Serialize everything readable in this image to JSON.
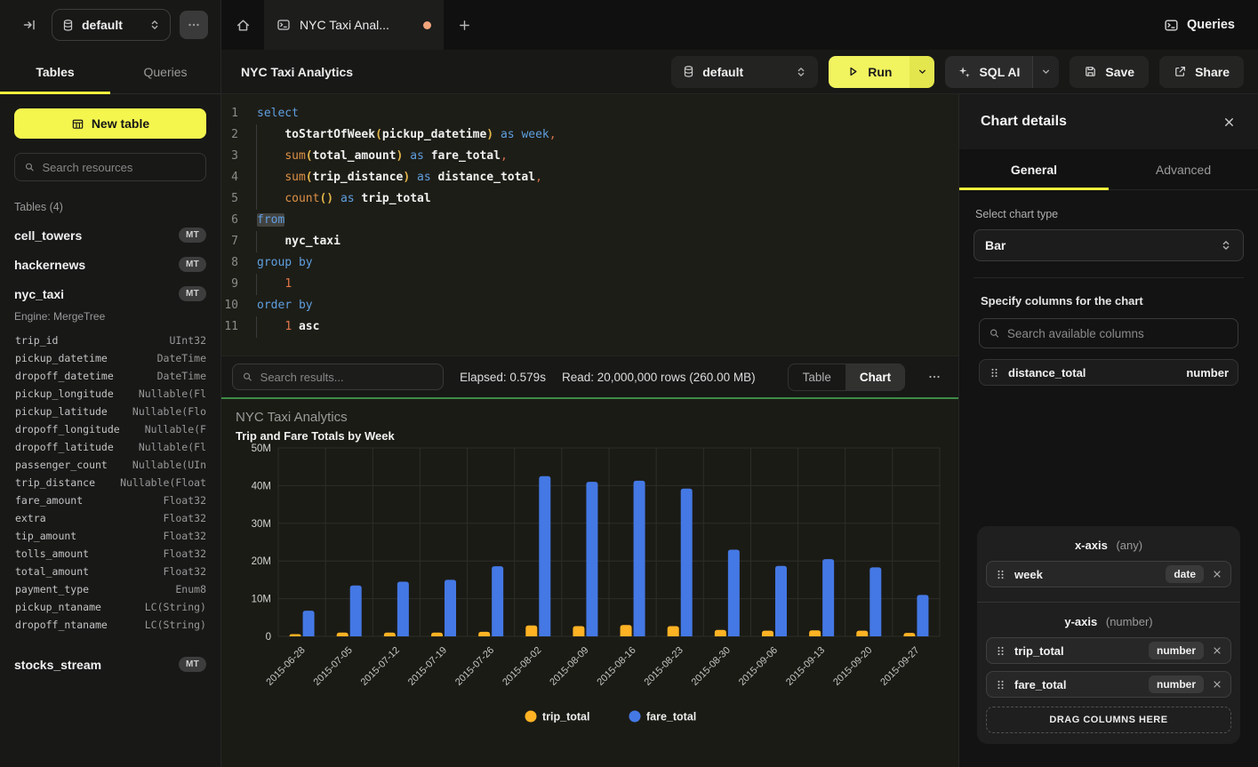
{
  "topbar": {
    "database_selector": {
      "value": "default"
    },
    "tab": {
      "title": "NYC Taxi Anal..."
    },
    "queries_label": "Queries"
  },
  "sidebar": {
    "tabs": {
      "tables": "Tables",
      "queries": "Queries"
    },
    "new_table_label": "New table",
    "search_placeholder": "Search resources",
    "section_label": "Tables (4)",
    "tables": [
      {
        "name": "cell_towers",
        "badge": "MT"
      },
      {
        "name": "hackernews",
        "badge": "MT"
      },
      {
        "name": "nyc_taxi",
        "badge": "MT"
      },
      {
        "name": "stocks_stream",
        "badge": "MT"
      }
    ],
    "nyc_taxi_engine": "Engine: MergeTree",
    "nyc_taxi_columns": [
      {
        "name": "trip_id",
        "type": "UInt32"
      },
      {
        "name": "pickup_datetime",
        "type": "DateTime"
      },
      {
        "name": "dropoff_datetime",
        "type": "DateTime"
      },
      {
        "name": "pickup_longitude",
        "type": "Nullable(Fl"
      },
      {
        "name": "pickup_latitude",
        "type": "Nullable(Flo"
      },
      {
        "name": "dropoff_longitude",
        "type": "Nullable(F"
      },
      {
        "name": "dropoff_latitude",
        "type": "Nullable(Fl"
      },
      {
        "name": "passenger_count",
        "type": "Nullable(UIn"
      },
      {
        "name": "trip_distance",
        "type": "Nullable(Float"
      },
      {
        "name": "fare_amount",
        "type": "Float32"
      },
      {
        "name": "extra",
        "type": "Float32"
      },
      {
        "name": "tip_amount",
        "type": "Float32"
      },
      {
        "name": "tolls_amount",
        "type": "Float32"
      },
      {
        "name": "total_amount",
        "type": "Float32"
      },
      {
        "name": "payment_type",
        "type": "Enum8"
      },
      {
        "name": "pickup_ntaname",
        "type": "LC(String)"
      },
      {
        "name": "dropoff_ntaname",
        "type": "LC(String)"
      }
    ]
  },
  "header": {
    "title": "NYC Taxi Analytics",
    "database_selector": {
      "value": "default"
    },
    "run_label": "Run",
    "sql_ai_label": "SQL AI",
    "save_label": "Save",
    "share_label": "Share"
  },
  "sql": {
    "lines": [
      {
        "n": "1",
        "guide": false,
        "tokens": [
          {
            "c": "kw",
            "t": "select"
          }
        ]
      },
      {
        "n": "2",
        "guide": true,
        "tokens": [
          {
            "c": "pl",
            "t": "    "
          },
          {
            "c": "id",
            "t": "toStartOfWeek"
          },
          {
            "c": "par",
            "t": "("
          },
          {
            "c": "id",
            "t": "pickup_datetime"
          },
          {
            "c": "par",
            "t": ")"
          },
          {
            "c": "pl",
            "t": " "
          },
          {
            "c": "kw",
            "t": "as"
          },
          {
            "c": "pl",
            "t": " "
          },
          {
            "c": "kw",
            "t": "week"
          },
          {
            "c": "pun",
            "t": ","
          }
        ]
      },
      {
        "n": "3",
        "guide": true,
        "tokens": [
          {
            "c": "pl",
            "t": "    "
          },
          {
            "c": "fn",
            "t": "sum"
          },
          {
            "c": "par",
            "t": "("
          },
          {
            "c": "id",
            "t": "total_amount"
          },
          {
            "c": "par",
            "t": ")"
          },
          {
            "c": "pl",
            "t": " "
          },
          {
            "c": "kw",
            "t": "as"
          },
          {
            "c": "pl",
            "t": " "
          },
          {
            "c": "id",
            "t": "fare_total"
          },
          {
            "c": "pun",
            "t": ","
          }
        ]
      },
      {
        "n": "4",
        "guide": true,
        "tokens": [
          {
            "c": "pl",
            "t": "    "
          },
          {
            "c": "fn",
            "t": "sum"
          },
          {
            "c": "par",
            "t": "("
          },
          {
            "c": "id",
            "t": "trip_distance"
          },
          {
            "c": "par",
            "t": ")"
          },
          {
            "c": "pl",
            "t": " "
          },
          {
            "c": "kw",
            "t": "as"
          },
          {
            "c": "pl",
            "t": " "
          },
          {
            "c": "id",
            "t": "distance_total"
          },
          {
            "c": "pun",
            "t": ","
          }
        ]
      },
      {
        "n": "5",
        "guide": true,
        "tokens": [
          {
            "c": "pl",
            "t": "    "
          },
          {
            "c": "fn",
            "t": "count"
          },
          {
            "c": "par",
            "t": "()"
          },
          {
            "c": "pl",
            "t": " "
          },
          {
            "c": "kw",
            "t": "as"
          },
          {
            "c": "pl",
            "t": " "
          },
          {
            "c": "id",
            "t": "trip_total"
          }
        ]
      },
      {
        "n": "6",
        "guide": false,
        "tokens": [
          {
            "c": "kw",
            "t": "from",
            "hl": true
          }
        ]
      },
      {
        "n": "7",
        "guide": true,
        "tokens": [
          {
            "c": "pl",
            "t": "    "
          },
          {
            "c": "id",
            "t": "nyc_taxi"
          }
        ]
      },
      {
        "n": "8",
        "guide": false,
        "tokens": [
          {
            "c": "kw",
            "t": "group by"
          }
        ]
      },
      {
        "n": "9",
        "guide": true,
        "tokens": [
          {
            "c": "pl",
            "t": "    "
          },
          {
            "c": "num",
            "t": "1"
          }
        ]
      },
      {
        "n": "10",
        "guide": false,
        "tokens": [
          {
            "c": "kw",
            "t": "order by"
          }
        ]
      },
      {
        "n": "11",
        "guide": true,
        "tokens": [
          {
            "c": "pl",
            "t": "    "
          },
          {
            "c": "num",
            "t": "1"
          },
          {
            "c": "pl",
            "t": " "
          },
          {
            "c": "id",
            "t": "asc"
          }
        ]
      }
    ]
  },
  "results_bar": {
    "search_placeholder": "Search results...",
    "elapsed": "Elapsed: 0.579s",
    "read": "Read: 20,000,000 rows (260.00 MB)",
    "toggle": {
      "table": "Table",
      "chart": "Chart"
    }
  },
  "chart_data": {
    "type": "bar",
    "title": "NYC Taxi Analytics",
    "subtitle": "Trip and Fare Totals by Week",
    "unit": "millions",
    "categories": [
      "2015-06-28",
      "2015-07-05",
      "2015-07-12",
      "2015-07-19",
      "2015-07-26",
      "2015-08-02",
      "2015-08-09",
      "2015-08-16",
      "2015-08-23",
      "2015-08-30",
      "2015-09-06",
      "2015-09-13",
      "2015-09-20",
      "2015-09-27"
    ],
    "series": [
      {
        "name": "trip_total",
        "color": "#FFB224",
        "values": [
          0.6,
          1.0,
          1.0,
          1.0,
          1.2,
          2.9,
          2.7,
          3.0,
          2.7,
          1.7,
          1.5,
          1.6,
          1.5,
          0.9
        ]
      },
      {
        "name": "fare_total",
        "color": "#4478E4",
        "values": [
          6.8,
          13.5,
          14.5,
          15.0,
          18.6,
          42.5,
          41.0,
          41.3,
          39.2,
          23.0,
          18.7,
          20.5,
          18.3,
          11.0
        ]
      }
    ],
    "ylim": [
      0,
      50
    ],
    "yticks": [
      {
        "label": "50M",
        "value": 50
      },
      {
        "label": "40M",
        "value": 40
      },
      {
        "label": "30M",
        "value": 30
      },
      {
        "label": "20M",
        "value": 20
      },
      {
        "label": "10M",
        "value": 10
      },
      {
        "label": "0",
        "value": 0
      }
    ],
    "grid": true,
    "legend_position": "bottom"
  },
  "details": {
    "title": "Chart details",
    "tabs": {
      "general": "General",
      "advanced": "Advanced"
    },
    "chart_type_label": "Select chart type",
    "chart_type_value": "Bar",
    "columns_label": "Specify columns for the chart",
    "search_placeholder": "Search available columns",
    "available_columns": [
      {
        "name": "distance_total",
        "type": "number"
      }
    ],
    "x_axis": {
      "title": "x-axis",
      "hint": "(any)",
      "items": [
        {
          "name": "week",
          "type": "date"
        }
      ]
    },
    "y_axis": {
      "title": "y-axis",
      "hint": "(number)",
      "items": [
        {
          "name": "trip_total",
          "type": "number"
        },
        {
          "name": "fare_total",
          "type": "number"
        }
      ]
    },
    "drop_label": "DRAG COLUMNS HERE"
  }
}
